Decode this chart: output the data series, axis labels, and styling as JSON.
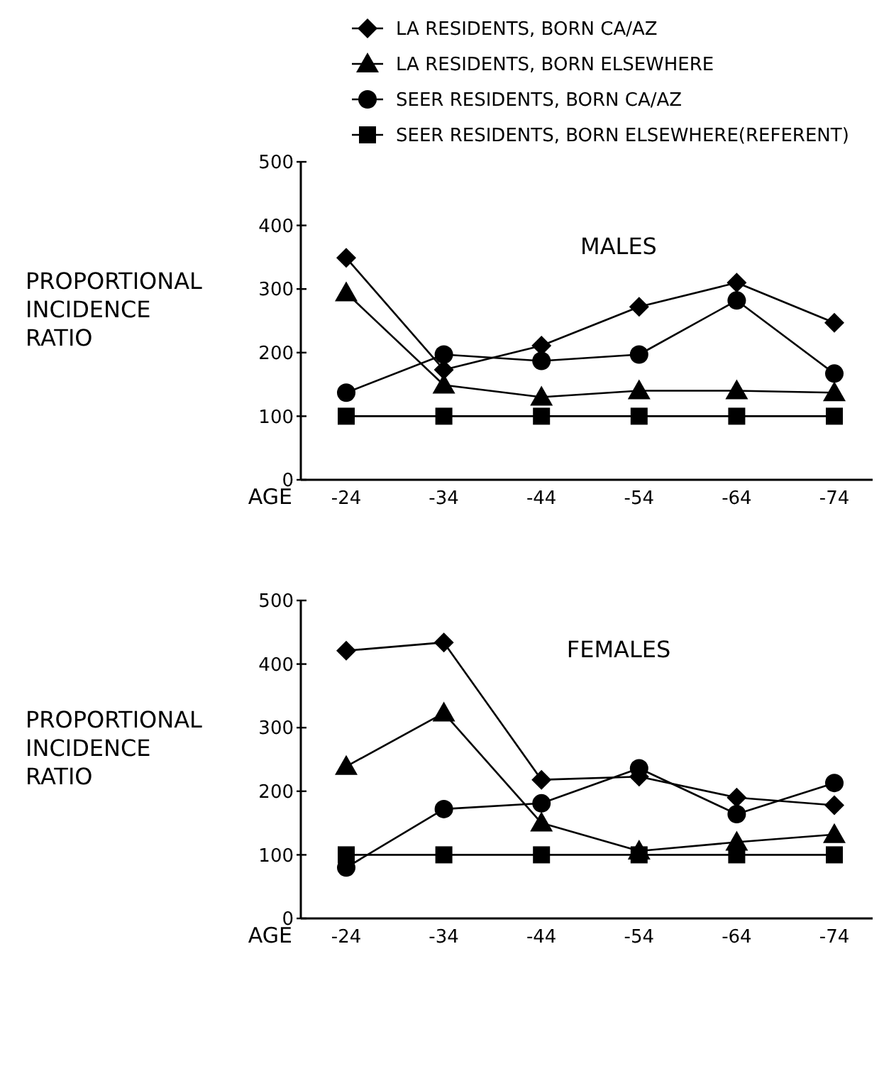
{
  "chart_data": [
    {
      "type": "line",
      "title": "MALES",
      "xlabel": "AGE",
      "ylabel": "PROPORTIONAL INCIDENCE RATIO",
      "categories": [
        "-24",
        "-34",
        "-44",
        "-54",
        "-64",
        "-74"
      ],
      "ylim": [
        0,
        500
      ],
      "yticks": [
        0,
        100,
        200,
        300,
        400,
        500
      ],
      "legend": "top",
      "grid": false,
      "line_style": "solid",
      "series": [
        {
          "name": "LA RESIDENTS, BORN CA/AZ",
          "color": "#000000",
          "marker": "diamond",
          "values": [
            349,
            173,
            211,
            272,
            310,
            247
          ]
        },
        {
          "name": "LA RESIDENTS, BORN ELSEWHERE",
          "color": "#000000",
          "marker": "triangle",
          "values": [
            294,
            149,
            130,
            140,
            140,
            137
          ]
        },
        {
          "name": "SEER RESIDENTS, BORN CA/AZ",
          "color": "#000000",
          "marker": "circle",
          "values": [
            137,
            197,
            187,
            197,
            282,
            167
          ]
        },
        {
          "name": "SEER RESIDENTS, BORN ELSEWHERE(REFERENT)",
          "color": "#000000",
          "marker": "square",
          "values": [
            100,
            100,
            100,
            100,
            100,
            100
          ]
        }
      ]
    },
    {
      "type": "line",
      "title": "FEMALES",
      "xlabel": "AGE",
      "ylabel": "PROPORTIONAL INCIDENCE RATIO",
      "categories": [
        "-24",
        "-34",
        "-44",
        "-54",
        "-64",
        "-74"
      ],
      "ylim": [
        0,
        500
      ],
      "yticks": [
        0,
        100,
        200,
        300,
        400,
        500
      ],
      "legend": false,
      "grid": false,
      "line_style": "solid",
      "series": [
        {
          "color": "#000000",
          "marker": "diamond",
          "values": [
            421,
            434,
            218,
            223,
            190,
            178
          ]
        },
        {
          "color": "#000000",
          "marker": "triangle",
          "values": [
            239,
            323,
            150,
            106,
            120,
            132
          ]
        },
        {
          "color": "#000000",
          "marker": "circle",
          "values": [
            80,
            172,
            181,
            236,
            164,
            213
          ]
        },
        {
          "color": "#000000",
          "marker": "square",
          "values": [
            100,
            100,
            100,
            100,
            100,
            100
          ]
        }
      ]
    }
  ]
}
